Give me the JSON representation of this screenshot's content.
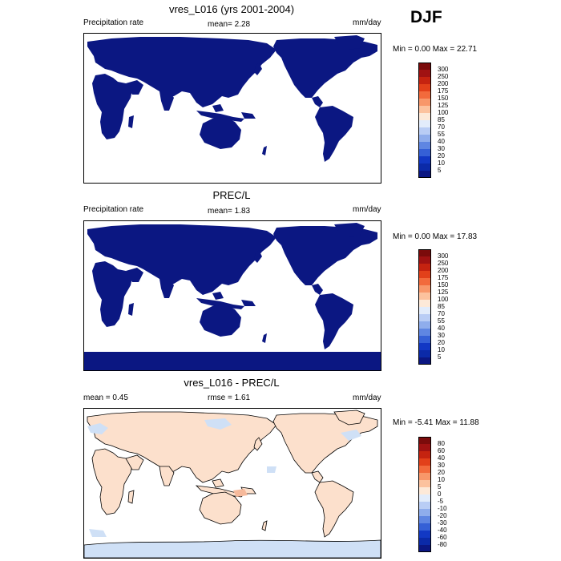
{
  "season": "DJF",
  "panels": [
    {
      "title": "vres_L016 (yrs 2001-2004)",
      "left": "Precipitation rate",
      "mid": "mean=   2.28",
      "right": "mm/day",
      "minmax": "Min =   0.00 Max =  22.71",
      "fill": "#0b1782",
      "polar": false,
      "cbar": {
        "labels": [
          "300",
          "250",
          "200",
          "175",
          "150",
          "125",
          "100",
          "85",
          "70",
          "55",
          "40",
          "30",
          "20",
          "10",
          "5"
        ],
        "colors": [
          "#7b0b0b",
          "#a01212",
          "#c52310",
          "#e2401a",
          "#f26a3c",
          "#f8976a",
          "#fcc29e",
          "#fde9d8",
          "#e2ecfb",
          "#b9cdf5",
          "#8fadec",
          "#5f86e2",
          "#3560d6",
          "#1238c4",
          "#0b2aa8",
          "#0b1782"
        ]
      }
    },
    {
      "title": "PREC/L",
      "left": "Precipitation rate",
      "mid": "mean=   1.83",
      "right": "mm/day",
      "minmax": "Min =   0.00 Max =  17.83",
      "fill": "#0b1782",
      "polar": true,
      "cbar": {
        "labels": [
          "300",
          "250",
          "200",
          "175",
          "150",
          "125",
          "100",
          "85",
          "70",
          "55",
          "40",
          "30",
          "20",
          "10",
          "5"
        ],
        "colors": [
          "#7b0b0b",
          "#a01212",
          "#c52310",
          "#e2401a",
          "#f26a3c",
          "#f8976a",
          "#fcc29e",
          "#fde9d8",
          "#e2ecfb",
          "#b9cdf5",
          "#8fadec",
          "#5f86e2",
          "#3560d6",
          "#1238c4",
          "#0b2aa8",
          "#0b1782"
        ]
      }
    },
    {
      "title": "vres_L016 - PREC/L",
      "left": "mean =   0.45",
      "mid": "rmse =   1.61",
      "right": "mm/day",
      "minmax": "Min =  -5.41 Max =  11.88",
      "fill": "#fce0cc",
      "polar": false,
      "cbar": {
        "labels": [
          "80",
          "60",
          "40",
          "30",
          "20",
          "10",
          "5",
          "0",
          "-5",
          "-10",
          "-20",
          "-30",
          "-40",
          "-60",
          "-80"
        ],
        "colors": [
          "#7b0b0b",
          "#a01212",
          "#c52310",
          "#e2401a",
          "#f26a3c",
          "#f8976a",
          "#fcc29e",
          "#fde9d8",
          "#e2ecfb",
          "#b9cdf5",
          "#8fadec",
          "#5f86e2",
          "#3560d6",
          "#1238c4",
          "#0b2aa8",
          "#0b1782"
        ]
      }
    }
  ]
}
